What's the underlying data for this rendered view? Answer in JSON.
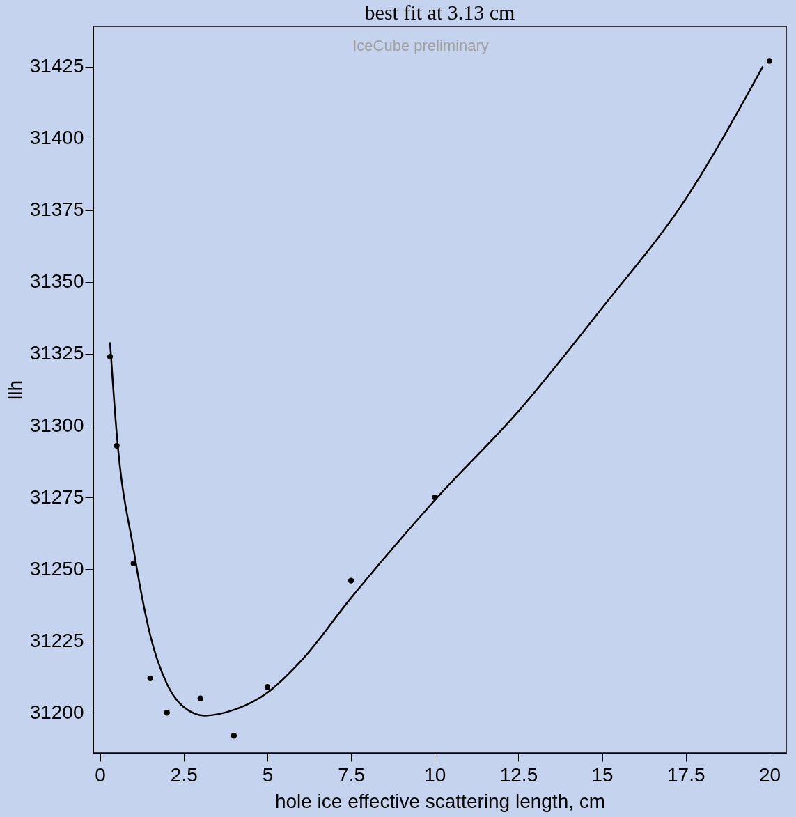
{
  "chart_data": {
    "type": "scatter",
    "title": "best fit at 3.13 cm",
    "xlabel": "hole ice effective scattering length, cm",
    "ylabel": "llh",
    "annotations": [
      "IceCube preliminary"
    ],
    "xlim": [
      -0.2,
      20.5
    ],
    "ylim": [
      31186,
      31439
    ],
    "xticks": [
      0,
      2.5,
      5,
      7.5,
      10,
      12.5,
      15,
      17.5,
      20
    ],
    "yticks": [
      31200,
      31225,
      31250,
      31275,
      31300,
      31325,
      31350,
      31375,
      31400,
      31425
    ],
    "grid": false,
    "series": [
      {
        "color": "#000000",
        "marker": "circle",
        "x": [
          0.3,
          0.5,
          1,
          1.5,
          2,
          3,
          4,
          5,
          7.5,
          10,
          20
        ],
        "values": [
          31324,
          31293,
          31252,
          31212,
          31200,
          31205,
          31192,
          31209,
          31246,
          31275,
          31427
        ]
      },
      {
        "type": "line",
        "color": "#000000",
        "line_style": "solid",
        "x": [
          0.3,
          0.5,
          1,
          1.5,
          2,
          2.5,
          3.13,
          4,
          5,
          6,
          7.5,
          10,
          12.5,
          15,
          17.5,
          19.8
        ],
        "values": [
          31329,
          31297,
          31257,
          31227,
          31210,
          31202,
          31199,
          31201,
          31207,
          31218,
          31240,
          31274,
          31305,
          31341,
          31379,
          31425
        ]
      }
    ]
  }
}
